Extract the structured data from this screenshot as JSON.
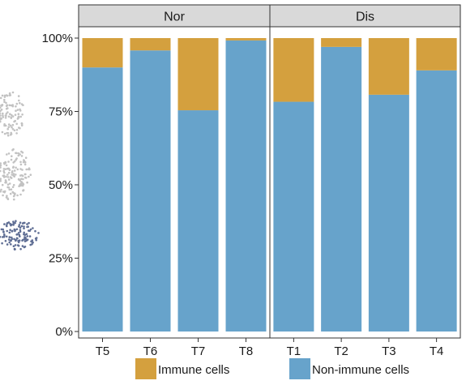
{
  "chart_data": {
    "type": "bar",
    "stacked": true,
    "orientation": "vertical",
    "facets": [
      {
        "label": "Nor",
        "categories": [
          "T5",
          "T6",
          "T7",
          "T8"
        ]
      },
      {
        "label": "Dis",
        "categories": [
          "T1",
          "T2",
          "T3",
          "T4"
        ]
      }
    ],
    "series": [
      {
        "name": "Non-immune cells",
        "color": "#67a3cb",
        "values": {
          "T5": 90,
          "T6": 95.8,
          "T7": 75.4,
          "T8": 99.2,
          "T1": 78.3,
          "T2": 97,
          "T3": 80.7,
          "T4": 89
        }
      },
      {
        "name": "Immune cells",
        "color": "#d4a03e",
        "values": {
          "T5": 10,
          "T6": 4.2,
          "T7": 24.6,
          "T8": 0.8,
          "T1": 21.7,
          "T2": 3,
          "T3": 19.3,
          "T4": 11
        }
      }
    ],
    "y_ticks": [
      "0%",
      "25%",
      "50%",
      "75%",
      "100%"
    ],
    "ylim": [
      0,
      100
    ],
    "legend": {
      "position": "bottom",
      "items": [
        "Immune cells",
        "Non-immune cells"
      ]
    },
    "grid": false
  },
  "panel_style": {
    "strip_fill": "#d9d9d9",
    "border": "#333333"
  },
  "scatter_fragment": {
    "gray_color": "#c2c2c2",
    "blue_color": "#5f6e94"
  }
}
